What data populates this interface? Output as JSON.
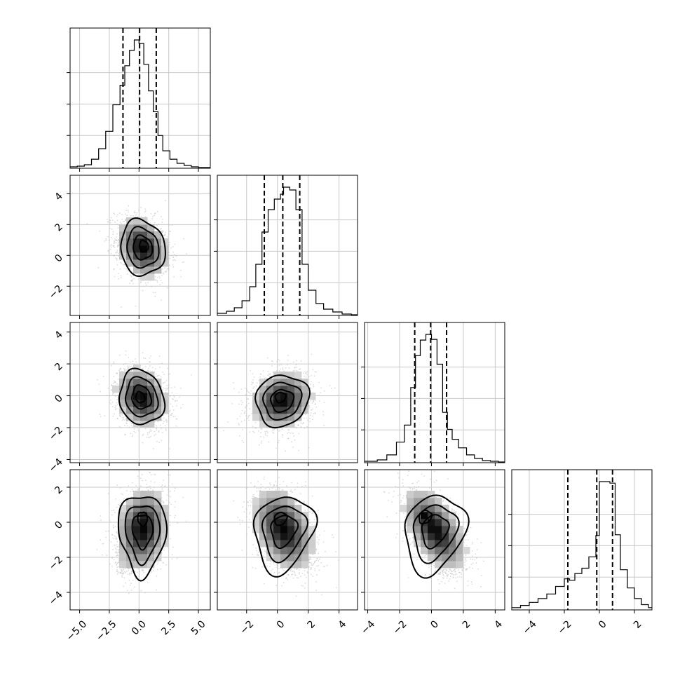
{
  "chart_data": {
    "type": "corner",
    "n_parameters": 4,
    "labels": [
      "",
      "",
      "",
      ""
    ],
    "grid": true,
    "quantiles": [
      0.16,
      0.5,
      0.84
    ],
    "ranges": [
      [
        -5.8,
        6.0
      ],
      [
        -3.9,
        5.2
      ],
      [
        -4.2,
        4.6
      ],
      [
        -5.0,
        3.0
      ]
    ],
    "x_tick_labels": [
      [
        "−5.0",
        "−2.5",
        "0.0",
        "2.5",
        "5.0"
      ],
      [
        "−2",
        "0",
        "2",
        "4"
      ],
      [
        "−4",
        "−2",
        "0",
        "2",
        "4"
      ],
      [
        "−4",
        "−2",
        "0",
        "2"
      ]
    ],
    "x_tick_values": [
      [
        -5.0,
        -2.5,
        0.0,
        2.5,
        5.0
      ],
      [
        -2,
        0,
        2,
        4
      ],
      [
        -4,
        -2,
        0,
        2,
        4
      ],
      [
        -4,
        -2,
        0,
        2
      ]
    ],
    "y_tick_labels": [
      [],
      [
        "−2",
        "0",
        "2",
        "4"
      ],
      [
        "−4",
        "−2",
        "0",
        "2",
        "4"
      ],
      [
        "−4",
        "−2",
        "0",
        "2"
      ]
    ],
    "y_tick_values": [
      [],
      [
        -2,
        0,
        2,
        4
      ],
      [
        -4,
        -2,
        0,
        2,
        4
      ],
      [
        -4,
        -2,
        0,
        2
      ]
    ],
    "marginals": [
      {
        "parameter": 0,
        "quantile_values": [
          -1.35,
          0.05,
          1.45
        ],
        "bin_edges": [
          -5.8,
          -5.2,
          -4.6,
          -4.0,
          -3.4,
          -2.8,
          -2.2,
          -1.6,
          -1.2,
          -0.8,
          -0.4,
          0.0,
          0.4,
          0.8,
          1.2,
          1.6,
          2.0,
          2.6,
          3.2,
          3.8,
          4.4,
          5.0,
          6.0
        ],
        "counts": [
          1,
          2,
          4,
          12,
          27,
          52,
          90,
          118,
          146,
          168,
          183,
          178,
          148,
          110,
          80,
          46,
          24,
          12,
          6,
          3,
          1,
          0
        ]
      },
      {
        "parameter": 1,
        "quantile_values": [
          -0.85,
          0.35,
          1.45
        ],
        "bin_edges": [
          -3.9,
          -3.3,
          -2.8,
          -2.3,
          -1.8,
          -1.4,
          -1.0,
          -0.6,
          -0.2,
          0.2,
          0.4,
          0.8,
          1.2,
          1.6,
          2.0,
          2.5,
          3.0,
          3.6,
          4.2,
          4.8,
          5.2
        ],
        "counts": [
          2,
          5,
          10,
          20,
          40,
          72,
          118,
          150,
          165,
          172,
          182,
          178,
          150,
          72,
          35,
          16,
          8,
          4,
          1,
          0
        ]
      },
      {
        "parameter": 2,
        "quantile_values": [
          -1.05,
          -0.05,
          0.95
        ],
        "bin_edges": [
          -4.2,
          -3.4,
          -2.8,
          -2.2,
          -1.7,
          -1.3,
          -1.0,
          -0.7,
          -0.35,
          0.0,
          0.35,
          0.7,
          1.0,
          1.3,
          1.7,
          2.2,
          2.7,
          3.2,
          3.7,
          4.2,
          4.6
        ],
        "counts": [
          1,
          3,
          10,
          28,
          52,
          105,
          150,
          172,
          180,
          173,
          138,
          70,
          46,
          32,
          20,
          10,
          5,
          2,
          1,
          0
        ]
      },
      {
        "parameter": 3,
        "quantile_values": [
          -1.8,
          -0.15,
          0.75
        ],
        "bin_edges": [
          -5.0,
          -4.5,
          -4.0,
          -3.5,
          -3.0,
          -2.5,
          -2.0,
          -1.7,
          -1.4,
          -1.0,
          -0.6,
          -0.2,
          0.0,
          0.6,
          0.9,
          1.2,
          1.6,
          2.0,
          2.4,
          2.8,
          3.0
        ],
        "counts": [
          2,
          5,
          9,
          14,
          20,
          30,
          40,
          38,
          47,
          54,
          69,
          97,
          168,
          166,
          98,
          52,
          28,
          14,
          6,
          2
        ]
      }
    ],
    "joints": [
      {
        "x_param": 0,
        "y_param": 1,
        "center": [
          0.3,
          0.5
        ],
        "sigma": [
          1.1,
          1.0
        ],
        "rho": -0.25,
        "peak": [
          0.4,
          0.6
        ]
      },
      {
        "x_param": 0,
        "y_param": 2,
        "center": [
          0.2,
          -0.1
        ],
        "sigma": [
          1.1,
          0.95
        ],
        "rho": -0.2,
        "peak": [
          0.1,
          -0.1
        ]
      },
      {
        "x_param": 1,
        "y_param": 2,
        "center": [
          0.3,
          -0.3
        ],
        "sigma": [
          1.0,
          0.9
        ],
        "rho": 0.15,
        "peak": [
          0.2,
          -0.1
        ]
      },
      {
        "x_param": 0,
        "y_param": 3,
        "center": [
          0.3,
          -0.4
        ],
        "sigma": [
          1.1,
          1.2
        ],
        "rho": 0.15,
        "peak": [
          0.3,
          0.2
        ],
        "tail": [
          -0.9,
          -2.0
        ]
      },
      {
        "x_param": 1,
        "y_param": 3,
        "center": [
          0.4,
          -0.4
        ],
        "sigma": [
          1.0,
          1.2
        ],
        "rho": -0.35,
        "peak": [
          0.2,
          0.2
        ],
        "tail": [
          1.3,
          -2.0
        ]
      },
      {
        "x_param": 2,
        "y_param": 3,
        "center": [
          0.2,
          -0.4
        ],
        "sigma": [
          1.0,
          1.2
        ],
        "rho": -0.55,
        "peak": [
          -0.4,
          0.3
        ],
        "tail": [
          1.0,
          -2.0
        ]
      }
    ],
    "contour_levels_sigma": [
      0.5,
      1.0,
      1.5,
      2.0
    ]
  }
}
